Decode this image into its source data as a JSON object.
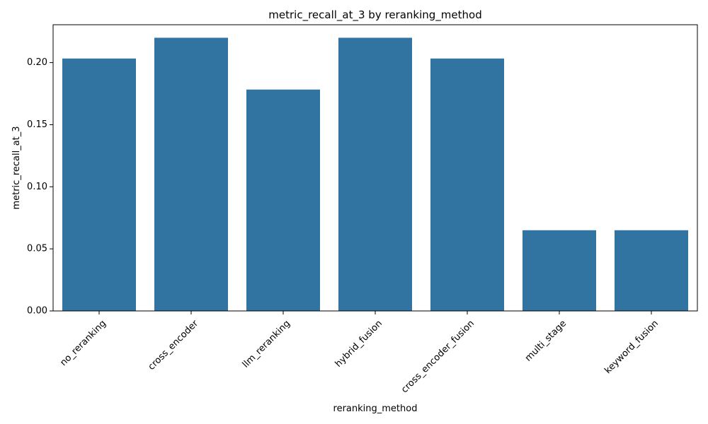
{
  "chart_data": {
    "type": "bar",
    "title": "metric_recall_at_3 by reranking_method",
    "xlabel": "reranking_method",
    "ylabel": "metric_recall_at_3",
    "categories": [
      "no_reranking",
      "cross_encoder",
      "llm_reranking",
      "hybrid_fusion",
      "cross_encoder_fusion",
      "multi_stage",
      "keyword_fusion"
    ],
    "values": [
      0.2033,
      0.22,
      0.1783,
      0.22,
      0.2033,
      0.065,
      0.065
    ],
    "ylim": [
      0,
      0.2305
    ],
    "yticks": [
      0.0,
      0.05,
      0.1,
      0.15,
      0.2
    ],
    "ytick_labels": [
      "0.00",
      "0.05",
      "0.10",
      "0.15",
      "0.20"
    ],
    "bar_color": "#3274a1",
    "grid": false,
    "xtick_rotation": 45
  }
}
